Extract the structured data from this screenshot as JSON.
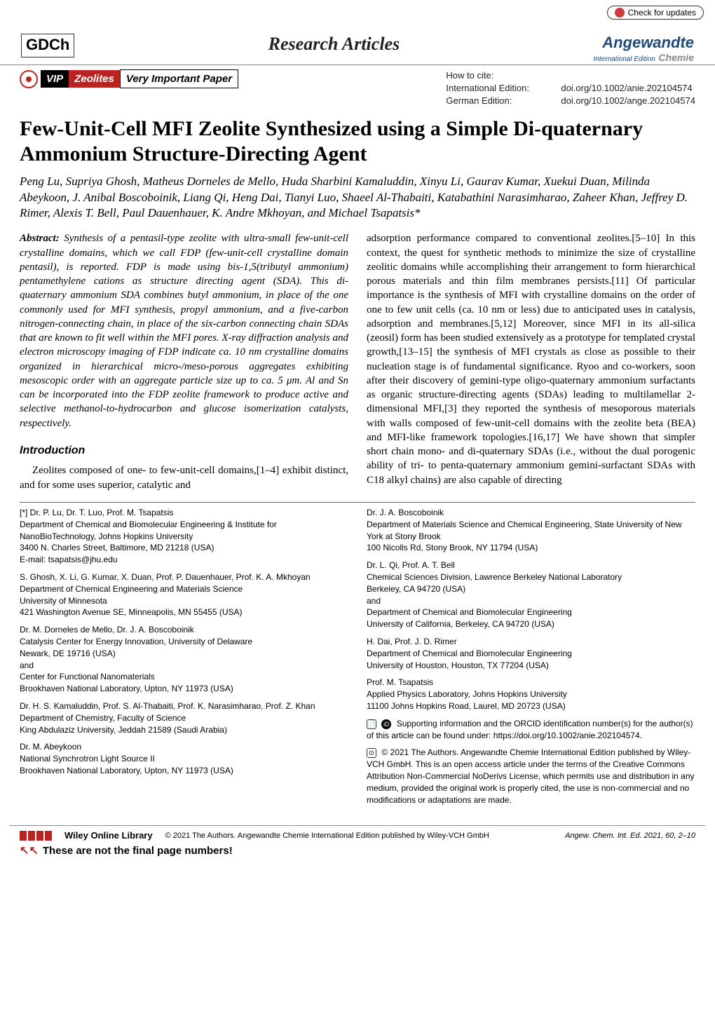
{
  "badge": {
    "text": "Check for updates"
  },
  "publisher_logo": "GDCh",
  "section_title": "Research Articles",
  "journal": {
    "main": "Angewandte",
    "sub_left": "International Edition",
    "sub_right": "Chemie"
  },
  "vip": {
    "tag": "VIP",
    "category": "Zeolites",
    "suffix": "Very Important Paper"
  },
  "cite": {
    "howto": "How to cite:",
    "intl_label": "International Edition:",
    "intl_doi": "doi.org/10.1002/anie.202104574",
    "de_label": "German Edition:",
    "de_doi": "doi.org/10.1002/ange.202104574"
  },
  "paper_title": "Few-Unit-Cell MFI Zeolite Synthesized using a Simple Di-quaternary Ammonium Structure-Directing Agent",
  "authors": "Peng Lu, Supriya Ghosh, Matheus Dorneles de Mello, Huda Sharbini Kamaluddin, Xinyu Li, Gaurav Kumar, Xuekui Duan, Milinda Abeykoon, J. Anibal Boscoboinik, Liang Qi, Heng Dai, Tianyi Luo, Shaeel Al-Thabaiti, Katabathini Narasimharao, Zaheer Khan, Jeffrey D. Rimer, Alexis T. Bell, Paul Dauenhauer, K. Andre Mkhoyan, and Michael Tsapatsis*",
  "abstract_label": "Abstract:",
  "abstract_text": "Synthesis of a pentasil-type zeolite with ultra-small few-unit-cell crystalline domains, which we call FDP (few-unit-cell crystalline domain pentasil), is reported. FDP is made using bis-1,5(tributyl ammonium) pentamethylene cations as structure directing agent (SDA). This di-quaternary ammonium SDA combines butyl ammonium, in place of the one commonly used for MFI synthesis, propyl ammonium, and a five-carbon nitrogen-connecting chain, in place of the six-carbon connecting chain SDAs that are known to fit well within the MFI pores. X-ray diffraction analysis and electron microscopy imaging of FDP indicate ca. 10 nm crystalline domains organized in hierarchical micro-/meso-porous aggregates exhibiting mesoscopic order with an aggregate particle size up to ca. 5 μm. Al and Sn can be incorporated into the FDP zeolite framework to produce active and selective methanol-to-hydrocarbon and glucose isomerization catalysts, respectively.",
  "intro_heading": "Introduction",
  "intro_para_left": "Zeolites composed of one- to few-unit-cell domains,[1–4] exhibit distinct, and for some uses superior, catalytic and",
  "intro_para_right": "adsorption performance compared to conventional zeolites.[5–10] In this context, the quest for synthetic methods to minimize the size of crystalline zeolitic domains while accomplishing their arrangement to form hierarchical porous materials and thin film membranes persists.[11] Of particular importance is the synthesis of MFI with crystalline domains on the order of one to few unit cells (ca. 10 nm or less) due to anticipated uses in catalysis, adsorption and membranes.[5,12] Moreover, since MFI in its all-silica (zeosil) form has been studied extensively as a prototype for templated crystal growth,[13–15] the synthesis of MFI crystals as close as possible to their nucleation stage is of fundamental significance. Ryoo and co-workers, soon after their discovery of gemini-type oligo-quaternary ammonium surfactants as organic structure-directing agents (SDAs) leading to multilamellar 2-dimensional MFI,[3] they reported the synthesis of mesoporous materials with walls composed of few-unit-cell domains with the zeolite beta (BEA) and MFI-like framework topologies.[16,17] We have shown that simpler short chain mono- and di-quaternary SDAs (i.e., without the dual porogenic ability of tri- to penta-quaternary ammonium gemini-surfactant SDAs with C18 alkyl chains) are also capable of directing",
  "affil_left": [
    "[*] Dr. P. Lu, Dr. T. Luo, Prof. M. Tsapatsis\nDepartment of Chemical and Biomolecular Engineering & Institute for NanoBioTechnology, Johns Hopkins University\n3400 N. Charles Street, Baltimore, MD 21218 (USA)\nE-mail: tsapatsis@jhu.edu",
    "S. Ghosh, X. Li, G. Kumar, X. Duan, Prof. P. Dauenhauer, Prof. K. A. Mkhoyan\nDepartment of Chemical Engineering and Materials Science\nUniversity of Minnesota\n421 Washington Avenue SE, Minneapolis, MN 55455 (USA)",
    "Dr. M. Dorneles de Mello, Dr. J. A. Boscoboinik\nCatalysis Center for Energy Innovation, University of Delaware\nNewark, DE 19716 (USA)\nand\nCenter for Functional Nanomaterials\nBrookhaven National Laboratory, Upton, NY 11973 (USA)",
    "Dr. H. S. Kamaluddin, Prof. S. Al-Thabaiti, Prof. K. Narasimharao, Prof. Z. Khan\nDepartment of Chemistry, Faculty of Science\nKing Abdulaziz University, Jeddah 21589 (Saudi Arabia)",
    "Dr. M. Abeykoon\nNational Synchrotron Light Source II\nBrookhaven National Laboratory, Upton, NY 11973 (USA)"
  ],
  "affil_right": [
    "Dr. J. A. Boscoboinik\nDepartment of Materials Science and Chemical Engineering, State University of New York at Stony Brook\n100 Nicolls Rd, Stony Brook, NY 11794 (USA)",
    "Dr. L. Qi, Prof. A. T. Bell\nChemical Sciences Division, Lawrence Berkeley National Laboratory\nBerkeley, CA 94720 (USA)\nand\nDepartment of Chemical and Biomolecular Engineering\nUniversity of California, Berkeley, CA 94720 (USA)",
    "H. Dai, Prof. J. D. Rimer\nDepartment of Chemical and Biomolecular Engineering\nUniversity of Houston, Houston, TX 77204 (USA)",
    "Prof. M. Tsapatsis\nApplied Physics Laboratory, Johns Hopkins University\n11100 Johns Hopkins Road, Laurel, MD 20723 (USA)"
  ],
  "supporting_info": "Supporting information and the ORCID identification number(s) for the author(s) of this article can be found under: https://doi.org/10.1002/anie.202104574.",
  "license": "© 2021 The Authors. Angewandte Chemie International Edition published by Wiley-VCH GmbH. This is an open access article under the terms of the Creative Commons Attribution Non-Commercial NoDerivs License, which permits use and distribution in any medium, provided the original work is properly cited, the use is non-commercial and no modifications or adaptations are made.",
  "footer": {
    "wiley": "Wiley Online Library",
    "copyright": "© 2021 The Authors. Angewandte Chemie International Edition published by Wiley-VCH GmbH",
    "citation": "Angew. Chem. Int. Ed. 2021, 60, 2–10",
    "note": "These are not the final page numbers!"
  }
}
